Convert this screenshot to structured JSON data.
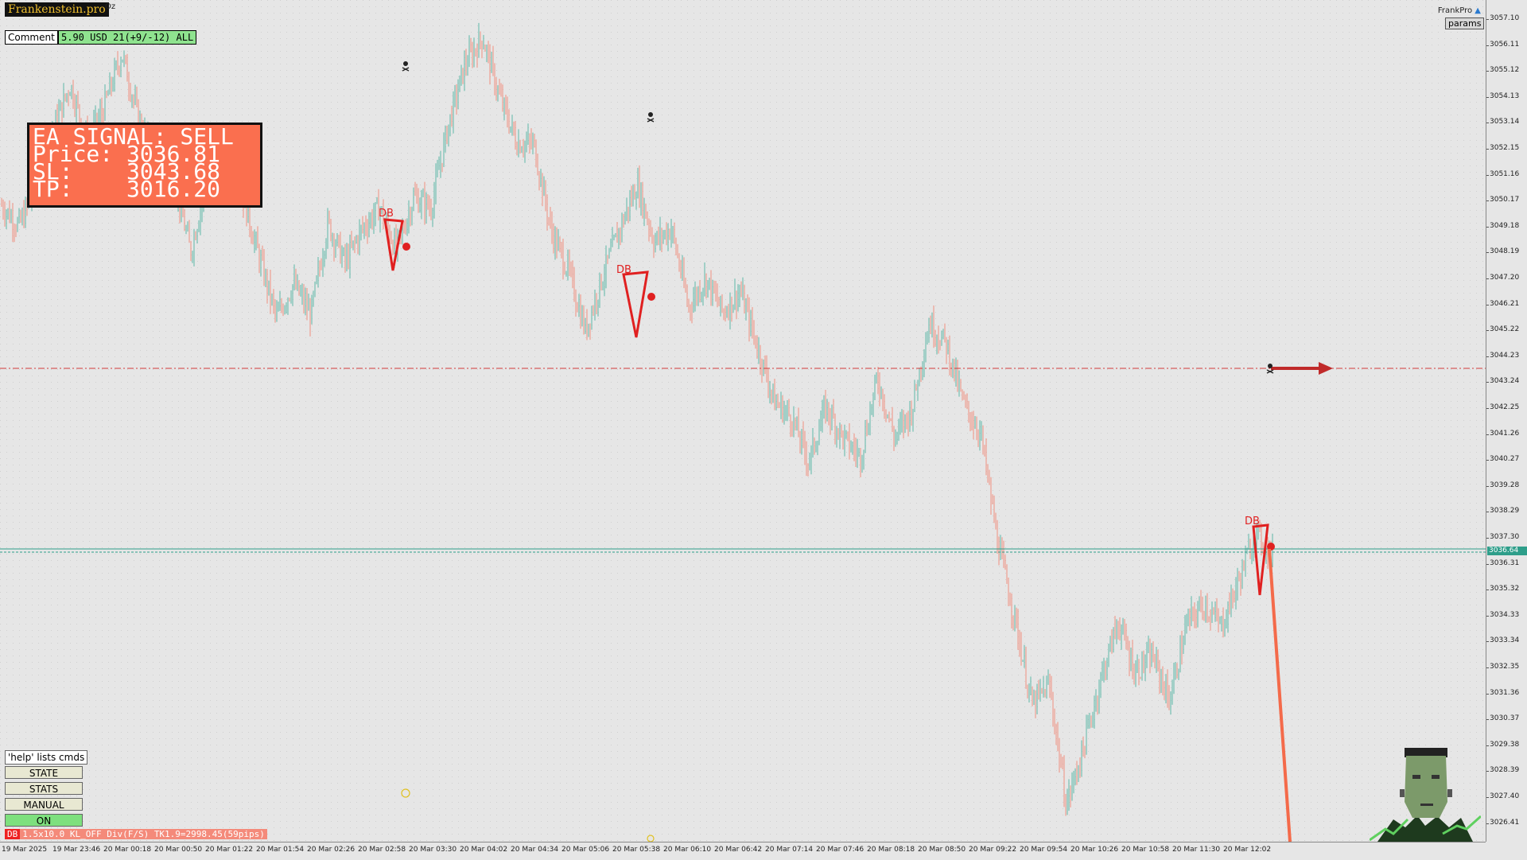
{
  "brand": {
    "name": "Frankenstein.pro",
    "tag": "Oz"
  },
  "comment": {
    "label": "Comment",
    "value": "5.90 USD 21(+9/-12) ALL"
  },
  "signal": {
    "line1": "EA SIGNAL: SELL",
    "line2": "Price: 3036.81",
    "line3": "SL:    3043.68",
    "line4": "TP:    3016.20"
  },
  "header_right": {
    "label": "FrankPro",
    "params_label": "params"
  },
  "side_panel": {
    "help": "'help' lists cmds",
    "buttons": [
      "STATE",
      "STATS",
      "MANUAL",
      "ON"
    ]
  },
  "status_bar": {
    "tag": "DB",
    "text": "1.5x10.0 KL_OFF Div(F/S) TK1.9=2998.45(59pips)"
  },
  "colors": {
    "bull": "#5fb8a8",
    "bear": "#f09080",
    "sell_level": "#d23a3a",
    "current_line": "#2e9e8a",
    "signal_bg": "#fa6f4f",
    "on_button": "#7ee07e"
  },
  "chart_data": {
    "type": "candlestick",
    "instrument": "",
    "current_price": "3036.64",
    "price_ticks": [
      "3057.10",
      "3056.11",
      "3055.12",
      "3054.13",
      "3053.14",
      "3052.15",
      "3051.16",
      "3050.17",
      "3049.18",
      "3048.19",
      "3047.20",
      "3046.21",
      "3045.22",
      "3044.23",
      "3043.24",
      "3042.25",
      "3041.26",
      "3040.27",
      "3039.28",
      "3038.29",
      "3037.30",
      "3036.31",
      "3035.32",
      "3034.33",
      "3033.34",
      "3032.35",
      "3031.36",
      "3030.37",
      "3029.38",
      "3028.39",
      "3027.40",
      "3026.41"
    ],
    "time_ticks": [
      "19 Mar 2025",
      "19 Mar 23:46",
      "20 Mar 00:18",
      "20 Mar 00:50",
      "20 Mar 01:22",
      "20 Mar 01:54",
      "20 Mar 02:26",
      "20 Mar 02:58",
      "20 Mar 03:30",
      "20 Mar 04:02",
      "20 Mar 04:34",
      "20 Mar 05:06",
      "20 Mar 05:38",
      "20 Mar 06:10",
      "20 Mar 06:42",
      "20 Mar 07:14",
      "20 Mar 07:46",
      "20 Mar 08:18",
      "20 Mar 08:50",
      "20 Mar 09:22",
      "20 Mar 09:54",
      "20 Mar 10:26",
      "20 Mar 10:58",
      "20 Mar 11:30",
      "20 Mar 12:02"
    ],
    "sell_level": 3043.68,
    "price_path": [
      3050.0,
      3049.2,
      3050.6,
      3052.9,
      3054.6,
      3052.4,
      3053.8,
      3055.8,
      3053.2,
      3051.8,
      3051.1,
      3048.2,
      3051.1,
      3052.0,
      3050.4,
      3048.0,
      3045.7,
      3047.0,
      3045.8,
      3049.3,
      3047.8,
      3049.1,
      3049.9,
      3048.3,
      3050.3,
      3049.9,
      3053.0,
      3055.4,
      3056.4,
      3054.1,
      3052.4,
      3052.3,
      3049.0,
      3047.5,
      3045.2,
      3047.3,
      3049.1,
      3050.8,
      3048.6,
      3049.1,
      3046.1,
      3047.2,
      3045.9,
      3046.7,
      3044.6,
      3042.5,
      3041.9,
      3040.2,
      3042.3,
      3041.1,
      3040.4,
      3043.4,
      3041.1,
      3042.2,
      3045.5,
      3044.7,
      3042.4,
      3041.3,
      3037.1,
      3034.2,
      3030.9,
      3031.7,
      3027.1,
      3029.3,
      3031.9,
      3034.1,
      3032.2,
      3032.8,
      3031.1,
      3034.0,
      3034.8,
      3033.9,
      3035.6,
      3037.5,
      3036.6
    ],
    "patterns": [
      {
        "label": "DB",
        "price": 3049.6
      },
      {
        "label": "DB",
        "price": 3047.3
      },
      {
        "label": "DB",
        "price": 3037.6
      }
    ]
  }
}
